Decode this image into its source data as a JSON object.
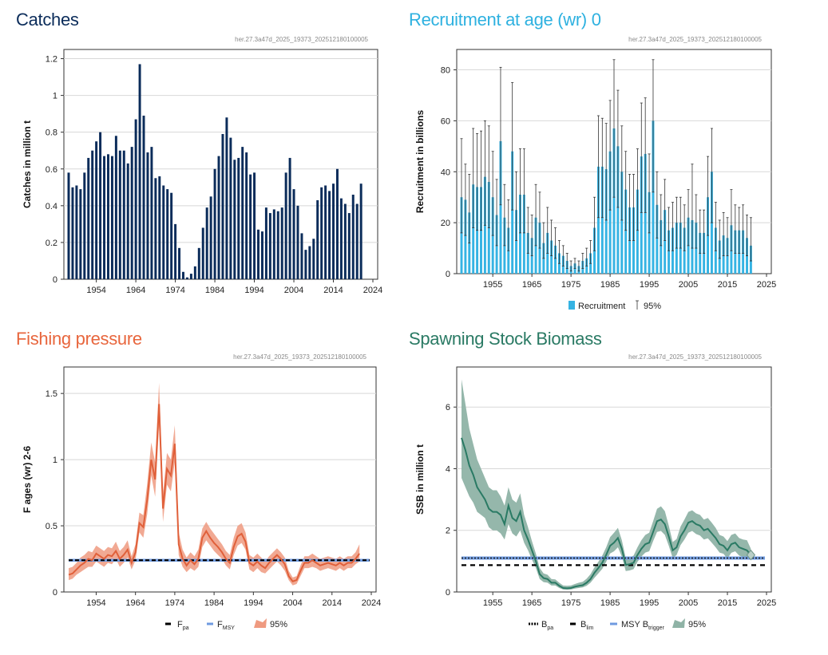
{
  "panels": {
    "catches": {
      "title": "Catches",
      "color": "#0b2c5a"
    },
    "recruitment": {
      "title": "Recruitment at age (wr) 0",
      "color": "#2eb1e0"
    },
    "fishing": {
      "title": "Fishing pressure",
      "color": "#e8663d"
    },
    "ssb": {
      "title": "Spawning Stock Biomass",
      "color": "#2a7a64"
    }
  },
  "chart_data": [
    {
      "id": "catches",
      "type": "bar",
      "title": "Catches",
      "ylabel": "Catches in million t",
      "xlabel": "",
      "source_label": "her.27.3a47d_2025_19373_202512180100005",
      "x_start": 1947,
      "xticks": [
        1954,
        1964,
        1974,
        1984,
        1994,
        2004,
        2014,
        2024
      ],
      "ylim": [
        0,
        1.25
      ],
      "yticks": [
        0,
        0.2,
        0.4,
        0.6,
        0.8,
        1,
        1.2
      ],
      "ytick_labels": [
        "0",
        "0.2",
        "0.4",
        "0.6",
        "0.8",
        "1",
        "1.2"
      ],
      "values": [
        0.58,
        0.5,
        0.51,
        0.49,
        0.58,
        0.66,
        0.7,
        0.75,
        0.8,
        0.67,
        0.68,
        0.67,
        0.78,
        0.7,
        0.7,
        0.63,
        0.72,
        0.87,
        1.17,
        0.89,
        0.69,
        0.72,
        0.55,
        0.56,
        0.51,
        0.49,
        0.47,
        0.3,
        0.17,
        0.04,
        0.01,
        0.03,
        0.07,
        0.17,
        0.28,
        0.39,
        0.45,
        0.6,
        0.67,
        0.79,
        0.88,
        0.77,
        0.65,
        0.66,
        0.72,
        0.69,
        0.57,
        0.58,
        0.27,
        0.26,
        0.39,
        0.36,
        0.38,
        0.37,
        0.39,
        0.58,
        0.66,
        0.49,
        0.4,
        0.25,
        0.16,
        0.18,
        0.22,
        0.43,
        0.5,
        0.51,
        0.48,
        0.52,
        0.6,
        0.44,
        0.41,
        0.36,
        0.46,
        0.41,
        0.52
      ]
    },
    {
      "id": "recruitment",
      "type": "bar",
      "title": "Recruitment at age (wr) 0",
      "ylabel": "Recruitment in billions",
      "xlabel": "",
      "source_label": "her.27.3a47d_2025_19373_202512180100005",
      "x_start": 1947,
      "xticks": [
        1955,
        1965,
        1975,
        1985,
        1995,
        2005,
        2015,
        2025
      ],
      "ylim": [
        0,
        88
      ],
      "yticks": [
        0,
        20,
        40,
        60,
        80
      ],
      "ytick_labels": [
        "0",
        "20",
        "40",
        "60",
        "80"
      ],
      "legend": [
        {
          "label": "Recruitment"
        },
        {
          "label": "95%"
        }
      ],
      "values": [
        30,
        29,
        24,
        35,
        34,
        34,
        38,
        36,
        30,
        23,
        52,
        22,
        18,
        48,
        25,
        31,
        31,
        16,
        14,
        22,
        20,
        12,
        16,
        13,
        11,
        8,
        7,
        5,
        3,
        4,
        3,
        5,
        6,
        8,
        18,
        42,
        42,
        41,
        48,
        57,
        50,
        40,
        33,
        26,
        26,
        33,
        46,
        47,
        32,
        60,
        27,
        21,
        25,
        17,
        18,
        20,
        20,
        18,
        22,
        21,
        20,
        16,
        16,
        30,
        40,
        18,
        13,
        15,
        14,
        19,
        17,
        17,
        17,
        14,
        11
      ],
      "upper": [
        53,
        43,
        39,
        57,
        55,
        56,
        60,
        58,
        48,
        37,
        81,
        35,
        29,
        75,
        40,
        49,
        49,
        26,
        23,
        35,
        32,
        20,
        26,
        21,
        18,
        13,
        11,
        8,
        5,
        6,
        5,
        8,
        10,
        13,
        30,
        62,
        61,
        59,
        68,
        84,
        72,
        58,
        48,
        39,
        39,
        49,
        67,
        69,
        47,
        84,
        40,
        31,
        37,
        26,
        28,
        30,
        30,
        27,
        33,
        43,
        31,
        25,
        25,
        46,
        57,
        28,
        21,
        24,
        22,
        33,
        27,
        26,
        27,
        23,
        22
      ],
      "lower": [
        16,
        15,
        12,
        18,
        17,
        17,
        19,
        18,
        15,
        11,
        27,
        11,
        9,
        25,
        13,
        16,
        16,
        8,
        7,
        11,
        10,
        6,
        8,
        7,
        6,
        4,
        3,
        2,
        1,
        2,
        1,
        2,
        3,
        4,
        9,
        22,
        22,
        21,
        25,
        30,
        26,
        21,
        17,
        13,
        13,
        17,
        24,
        24,
        16,
        32,
        14,
        11,
        13,
        9,
        9,
        10,
        10,
        9,
        11,
        10,
        10,
        8,
        8,
        15,
        20,
        9,
        6,
        7,
        7,
        9,
        8,
        8,
        8,
        7,
        5
      ]
    },
    {
      "id": "fishing",
      "type": "line",
      "title": "Fishing pressure",
      "ylabel": "F ages (wr) 2-6",
      "xlabel": "",
      "source_label": "her.27.3a47d_2025_19373_202512180100005",
      "x_start": 1947,
      "xticks": [
        1954,
        1964,
        1974,
        1984,
        1994,
        2004,
        2014,
        2024
      ],
      "ylim": [
        0,
        1.7
      ],
      "yticks": [
        0,
        0.5,
        1,
        1.5
      ],
      "ytick_labels": [
        "0",
        "0.5",
        "1",
        "1.5"
      ],
      "reference_lines": [
        {
          "name": "Fpa",
          "value": 0.24
        },
        {
          "name": "FMSY",
          "value": 0.24
        }
      ],
      "legend": [
        {
          "label": "F",
          "sub": "pa"
        },
        {
          "label": "F",
          "sub": "MSY"
        },
        {
          "label": "95%"
        }
      ],
      "values": [
        0.13,
        0.14,
        0.17,
        0.2,
        0.22,
        0.25,
        0.24,
        0.29,
        0.27,
        0.25,
        0.28,
        0.27,
        0.31,
        0.25,
        0.28,
        0.32,
        0.22,
        0.3,
        0.52,
        0.49,
        0.7,
        1.0,
        0.85,
        1.42,
        0.63,
        0.93,
        0.88,
        1.12,
        0.36,
        0.25,
        0.2,
        0.24,
        0.21,
        0.25,
        0.41,
        0.46,
        0.41,
        0.37,
        0.34,
        0.3,
        0.25,
        0.22,
        0.34,
        0.42,
        0.44,
        0.38,
        0.22,
        0.2,
        0.23,
        0.2,
        0.18,
        0.22,
        0.25,
        0.28,
        0.25,
        0.21,
        0.12,
        0.08,
        0.09,
        0.16,
        0.22,
        0.22,
        0.24,
        0.22,
        0.2,
        0.21,
        0.22,
        0.21,
        0.2,
        0.22,
        0.2,
        0.22,
        0.22,
        0.25,
        0.29
      ],
      "upper": [
        0.18,
        0.19,
        0.22,
        0.26,
        0.28,
        0.31,
        0.3,
        0.35,
        0.33,
        0.31,
        0.34,
        0.33,
        0.38,
        0.31,
        0.34,
        0.39,
        0.27,
        0.36,
        0.6,
        0.58,
        0.82,
        1.13,
        0.98,
        1.58,
        0.74,
        1.05,
        1.0,
        1.26,
        0.45,
        0.32,
        0.26,
        0.3,
        0.27,
        0.32,
        0.48,
        0.53,
        0.48,
        0.44,
        0.4,
        0.36,
        0.31,
        0.28,
        0.41,
        0.5,
        0.52,
        0.45,
        0.28,
        0.26,
        0.29,
        0.26,
        0.23,
        0.27,
        0.3,
        0.33,
        0.3,
        0.26,
        0.16,
        0.11,
        0.12,
        0.2,
        0.27,
        0.27,
        0.29,
        0.27,
        0.25,
        0.26,
        0.27,
        0.26,
        0.25,
        0.27,
        0.25,
        0.27,
        0.27,
        0.3,
        0.36
      ],
      "lower": [
        0.09,
        0.1,
        0.13,
        0.15,
        0.17,
        0.19,
        0.19,
        0.23,
        0.21,
        0.19,
        0.22,
        0.21,
        0.25,
        0.19,
        0.22,
        0.26,
        0.17,
        0.24,
        0.45,
        0.41,
        0.59,
        0.88,
        0.72,
        1.26,
        0.53,
        0.81,
        0.76,
        0.98,
        0.28,
        0.19,
        0.15,
        0.18,
        0.16,
        0.19,
        0.34,
        0.39,
        0.35,
        0.31,
        0.28,
        0.25,
        0.2,
        0.17,
        0.28,
        0.35,
        0.37,
        0.32,
        0.17,
        0.15,
        0.18,
        0.15,
        0.14,
        0.17,
        0.2,
        0.23,
        0.2,
        0.16,
        0.09,
        0.05,
        0.06,
        0.12,
        0.18,
        0.18,
        0.19,
        0.18,
        0.16,
        0.17,
        0.18,
        0.17,
        0.16,
        0.18,
        0.16,
        0.18,
        0.18,
        0.21,
        0.23
      ]
    },
    {
      "id": "ssb",
      "type": "line",
      "title": "Spawning Stock Biomass",
      "ylabel": "SSB in million t",
      "xlabel": "",
      "source_label": "her.27.3a47d_2025_19373_202512180100005",
      "x_start": 1947,
      "xticks": [
        1955,
        1965,
        1975,
        1985,
        1995,
        2005,
        2015,
        2025
      ],
      "ylim": [
        0,
        7.3
      ],
      "yticks": [
        0,
        2,
        4,
        6
      ],
      "ytick_labels": [
        "0",
        "2",
        "4",
        "6"
      ],
      "reference_lines": [
        {
          "name": "Bpa",
          "value": 1.1
        },
        {
          "name": "Blim",
          "value": 0.87
        },
        {
          "name": "MSY Btrigger",
          "value": 1.1
        }
      ],
      "legend": [
        {
          "label": "B",
          "sub": "pa"
        },
        {
          "label": "B",
          "sub": "lim"
        },
        {
          "label": "MSY B",
          "sub": "trigger"
        },
        {
          "label": "95%"
        }
      ],
      "values": [
        5.0,
        4.6,
        4.1,
        3.8,
        3.4,
        3.2,
        3.0,
        2.7,
        2.6,
        2.6,
        2.5,
        2.2,
        2.8,
        2.4,
        2.3,
        2.6,
        2.0,
        1.7,
        1.35,
        1.0,
        0.58,
        0.45,
        0.42,
        0.3,
        0.3,
        0.2,
        0.13,
        0.12,
        0.13,
        0.17,
        0.2,
        0.22,
        0.3,
        0.42,
        0.62,
        0.78,
        0.95,
        1.2,
        1.5,
        1.6,
        1.75,
        1.4,
        0.88,
        0.9,
        0.95,
        1.2,
        1.4,
        1.55,
        1.6,
        1.95,
        2.3,
        2.35,
        2.2,
        1.8,
        1.35,
        1.45,
        1.8,
        2.0,
        2.25,
        2.3,
        2.2,
        2.15,
        2.0,
        2.05,
        1.9,
        1.75,
        1.55,
        1.5,
        1.35,
        1.55,
        1.6,
        1.45,
        1.4,
        1.35,
        1.2
      ],
      "upper": [
        6.9,
        6.1,
        5.3,
        4.8,
        4.3,
        4.0,
        3.7,
        3.4,
        3.3,
        3.3,
        3.1,
        2.8,
        3.4,
        3.0,
        2.9,
        3.2,
        2.5,
        2.1,
        1.65,
        1.25,
        0.78,
        0.6,
        0.56,
        0.42,
        0.41,
        0.3,
        0.21,
        0.2,
        0.21,
        0.26,
        0.3,
        0.33,
        0.43,
        0.58,
        0.8,
        0.98,
        1.18,
        1.45,
        1.78,
        1.92,
        2.08,
        1.68,
        1.1,
        1.12,
        1.18,
        1.45,
        1.68,
        1.85,
        1.92,
        2.3,
        2.7,
        2.78,
        2.62,
        2.15,
        1.62,
        1.72,
        2.12,
        2.35,
        2.6,
        2.65,
        2.55,
        2.5,
        2.35,
        2.4,
        2.25,
        2.08,
        1.85,
        1.8,
        1.65,
        1.85,
        1.9,
        1.75,
        1.7,
        1.68,
        1.4
      ],
      "lower": [
        3.7,
        3.4,
        3.1,
        2.9,
        2.6,
        2.5,
        2.4,
        2.1,
        2.0,
        2.0,
        1.9,
        1.7,
        2.2,
        1.9,
        1.8,
        2.0,
        1.6,
        1.35,
        1.05,
        0.78,
        0.42,
        0.32,
        0.3,
        0.21,
        0.21,
        0.13,
        0.08,
        0.07,
        0.08,
        0.11,
        0.13,
        0.15,
        0.2,
        0.3,
        0.46,
        0.6,
        0.75,
        0.98,
        1.25,
        1.32,
        1.45,
        1.15,
        0.68,
        0.7,
        0.74,
        0.98,
        1.15,
        1.28,
        1.32,
        1.65,
        1.95,
        1.98,
        1.85,
        1.5,
        1.1,
        1.2,
        1.52,
        1.7,
        1.92,
        1.98,
        1.88,
        1.83,
        1.7,
        1.74,
        1.6,
        1.45,
        1.28,
        1.24,
        1.08,
        1.27,
        1.32,
        1.18,
        1.14,
        1.05,
        1.05
      ]
    }
  ]
}
